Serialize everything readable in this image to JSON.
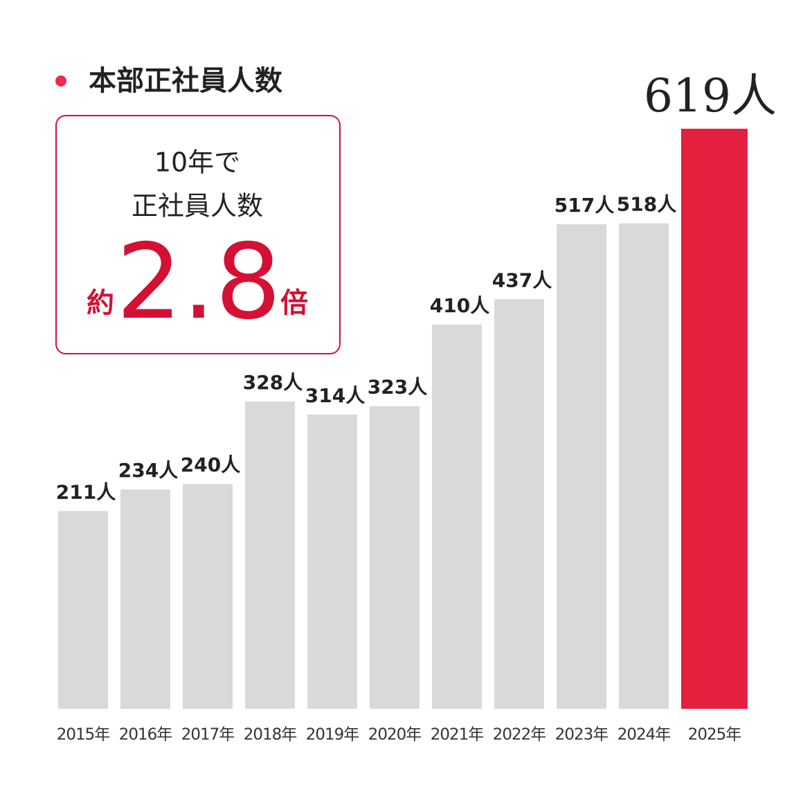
{
  "chart_data": {
    "type": "bar",
    "title": "本部正社員人数",
    "callout": {
      "line1": "10年で",
      "line2": "正社員人数",
      "prefix": "約",
      "number": "2.8",
      "suffix": "倍"
    },
    "categories": [
      "2015年",
      "2016年",
      "2017年",
      "2018年",
      "2019年",
      "2020年",
      "2021年",
      "2022年",
      "2023年",
      "2024年",
      "2025年"
    ],
    "values": [
      211,
      234,
      240,
      328,
      314,
      323,
      410,
      437,
      517,
      518,
      619
    ],
    "value_labels": [
      "211人",
      "234人",
      "240人",
      "328人",
      "314人",
      "323人",
      "410人",
      "437人",
      "517人",
      "518人",
      "619人"
    ],
    "colors": [
      "#d9d9d9",
      "#d9d9d9",
      "#d9d9d9",
      "#d9d9d9",
      "#d9d9d9",
      "#d9d9d9",
      "#d9d9d9",
      "#d9d9d9",
      "#d9d9d9",
      "#d9d9d9",
      "#e4203f"
    ],
    "ylim": [
      0,
      650
    ]
  }
}
